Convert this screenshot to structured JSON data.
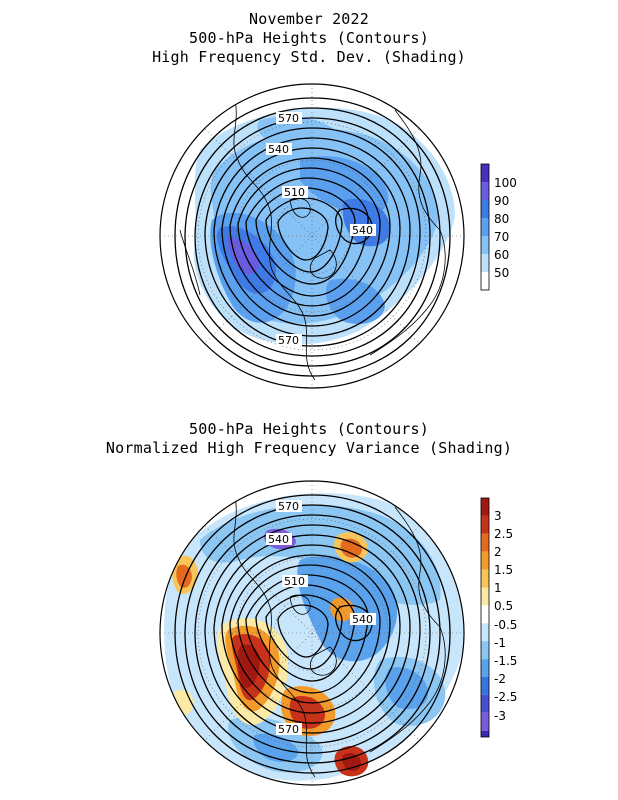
{
  "panel1": {
    "title_lines": [
      "November 2022",
      "500-hPa Heights (Contours)",
      "High Frequency Std. Dev. (Shading)"
    ],
    "contour_labels": [
      "570",
      "540",
      "510",
      "540",
      "570"
    ],
    "colorbar": {
      "labels": [
        "100",
        "90",
        "80",
        "70",
        "60",
        "50"
      ],
      "colors": [
        "#4a2fbf",
        "#6a5ce0",
        "#3f7be6",
        "#5aa0ef",
        "#86c2f6",
        "#bde0fb",
        "#ffffff"
      ]
    }
  },
  "panel2": {
    "title_lines": [
      "500-hPa Heights (Contours)",
      "Normalized High Frequency Variance (Shading)"
    ],
    "contour_labels": [
      "570",
      "540",
      "510",
      "540",
      "570"
    ],
    "colorbar": {
      "labels": [
        "3",
        "2.5",
        "2",
        "1.5",
        "1",
        "0.5",
        "-0.5",
        "-1",
        "-1.5",
        "-2",
        "-2.5",
        "-3"
      ],
      "colors": [
        "#a01810",
        "#c8321a",
        "#e36a1f",
        "#f29a2a",
        "#f7c55a",
        "#fbe9a6",
        "#ffffff",
        "#c8e6fb",
        "#8cc6f3",
        "#5aa3ec",
        "#3a74de",
        "#4a4fd0",
        "#7a5cd9",
        "#3b2ab0"
      ]
    }
  }
}
